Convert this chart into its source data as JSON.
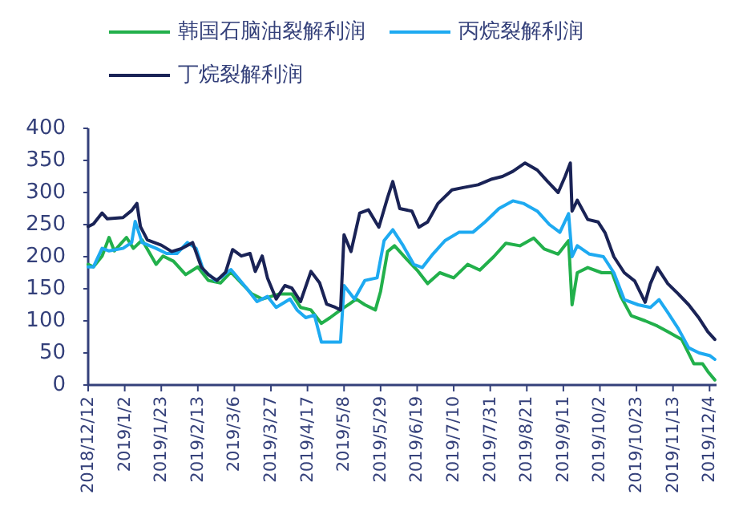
{
  "chart_data": {
    "type": "line",
    "xlim": [
      "2018-12-12",
      "2019-12-08"
    ],
    "xticks": [
      {
        "value": "2018-12-12",
        "label": "2018/12/12"
      },
      {
        "value": "2019-01-02",
        "label": "2019/1/2"
      },
      {
        "value": "2019-01-23",
        "label": "2019/1/23"
      },
      {
        "value": "2019-02-13",
        "label": "2019/2/13"
      },
      {
        "value": "2019-03-06",
        "label": "2019/3/6"
      },
      {
        "value": "2019-03-27",
        "label": "2019/3/27"
      },
      {
        "value": "2019-04-17",
        "label": "2019/4/17"
      },
      {
        "value": "2019-05-08",
        "label": "2019/5/8"
      },
      {
        "value": "2019-05-29",
        "label": "2019/5/29"
      },
      {
        "value": "2019-06-19",
        "label": "2019/6/19"
      },
      {
        "value": "2019-07-10",
        "label": "2019/7/10"
      },
      {
        "value": "2019-07-31",
        "label": "2019/7/31"
      },
      {
        "value": "2019-08-21",
        "label": "2019/8/21"
      },
      {
        "value": "2019-09-11",
        "label": "2019/9/11"
      },
      {
        "value": "2019-10-02",
        "label": "2019/10/2"
      },
      {
        "value": "2019-10-23",
        "label": "2019/10/23"
      },
      {
        "value": "2019-11-13",
        "label": "2019/11/13"
      },
      {
        "value": "2019-12-04",
        "label": "2019/12/4"
      }
    ],
    "ylim": [
      0,
      400
    ],
    "yticks": [
      0,
      50,
      100,
      150,
      200,
      250,
      300,
      350,
      400
    ],
    "legend": "top",
    "grid": false,
    "line_style": "solid",
    "marker": "none",
    "series": [
      {
        "name": "韩国石脑油裂解利润",
        "color": "#22b04b",
        "x": [
          "2018-12-12",
          "2018-12-15",
          "2018-12-20",
          "2018-12-24",
          "2018-12-27",
          "2019-01-03",
          "2019-01-07",
          "2019-01-12",
          "2019-01-20",
          "2019-01-24",
          "2019-01-30",
          "2019-02-06",
          "2019-02-13",
          "2019-02-19",
          "2019-02-26",
          "2019-03-04",
          "2019-03-10",
          "2019-03-16",
          "2019-03-22",
          "2019-04-01",
          "2019-04-08",
          "2019-04-13",
          "2019-04-19",
          "2019-04-25",
          "2019-04-30",
          "2019-05-06",
          "2019-05-11",
          "2019-05-15",
          "2019-05-20",
          "2019-05-26",
          "2019-05-29",
          "2019-06-02",
          "2019-06-06",
          "2019-06-13",
          "2019-06-19",
          "2019-06-25",
          "2019-07-02",
          "2019-07-10",
          "2019-07-18",
          "2019-07-25",
          "2019-08-02",
          "2019-08-09",
          "2019-08-17",
          "2019-08-25",
          "2019-08-31",
          "2019-09-08",
          "2019-09-14",
          "2019-09-16",
          "2019-09-19",
          "2019-09-25",
          "2019-10-03",
          "2019-10-09",
          "2019-10-14",
          "2019-10-20",
          "2019-10-28",
          "2019-11-04",
          "2019-11-10",
          "2019-11-18",
          "2019-11-25",
          "2019-11-30",
          "2019-12-03",
          "2019-12-07"
        ],
        "values": [
          188,
          184,
          201,
          230,
          209,
          230,
          213,
          226,
          188,
          201,
          193,
          172,
          184,
          163,
          159,
          176,
          159,
          142,
          134,
          142,
          142,
          121,
          117,
          96,
          105,
          117,
          126,
          134,
          125,
          117,
          146,
          208,
          217,
          196,
          179,
          158,
          175,
          167,
          188,
          179,
          200,
          221,
          217,
          229,
          212,
          204,
          225,
          125,
          175,
          183,
          175,
          175,
          138,
          108,
          100,
          92,
          83,
          71,
          33,
          33,
          21,
          8
        ]
      },
      {
        "name": "丙烷裂解利润",
        "color": "#1eaaf1",
        "x": [
          "2018-12-12",
          "2018-12-15",
          "2018-12-20",
          "2018-12-24",
          "2019-01-01",
          "2019-01-06",
          "2019-01-08",
          "2019-01-12",
          "2019-01-20",
          "2019-01-26",
          "2019-02-01",
          "2019-02-07",
          "2019-02-12",
          "2019-02-16",
          "2019-02-23",
          "2019-02-26",
          "2019-03-04",
          "2019-03-08",
          "2019-03-13",
          "2019-03-19",
          "2019-03-25",
          "2019-03-30",
          "2019-04-07",
          "2019-04-11",
          "2019-04-16",
          "2019-04-21",
          "2019-04-25",
          "2019-04-30",
          "2019-05-06",
          "2019-05-08",
          "2019-05-14",
          "2019-05-20",
          "2019-05-27",
          "2019-05-31",
          "2019-06-05",
          "2019-06-11",
          "2019-06-17",
          "2019-06-22",
          "2019-06-28",
          "2019-07-05",
          "2019-07-13",
          "2019-07-21",
          "2019-07-28",
          "2019-08-05",
          "2019-08-13",
          "2019-08-19",
          "2019-08-27",
          "2019-09-03",
          "2019-09-09",
          "2019-09-14",
          "2019-09-16",
          "2019-09-19",
          "2019-09-26",
          "2019-10-04",
          "2019-10-10",
          "2019-10-16",
          "2019-10-24",
          "2019-10-31",
          "2019-11-05",
          "2019-11-10",
          "2019-11-16",
          "2019-11-22",
          "2019-11-28",
          "2019-12-04",
          "2019-12-07"
        ],
        "values": [
          184,
          184,
          213,
          209,
          213,
          222,
          255,
          222,
          213,
          205,
          205,
          222,
          213,
          180,
          163,
          167,
          180,
          167,
          151,
          130,
          138,
          121,
          134,
          117,
          105,
          109,
          67,
          67,
          67,
          155,
          134,
          163,
          167,
          225,
          242,
          217,
          188,
          183,
          204,
          225,
          238,
          238,
          254,
          275,
          287,
          283,
          271,
          250,
          238,
          267,
          200,
          217,
          204,
          200,
          175,
          133,
          125,
          121,
          133,
          113,
          88,
          58,
          50,
          46,
          40
        ]
      },
      {
        "name": "丁烷裂解利润",
        "color": "#1a2356",
        "x": [
          "2018-12-12",
          "2018-12-15",
          "2018-12-20",
          "2018-12-23",
          "2019-01-01",
          "2019-01-06",
          "2019-01-09",
          "2019-01-11",
          "2019-01-15",
          "2019-01-23",
          "2019-01-29",
          "2019-02-04",
          "2019-02-10",
          "2019-02-15",
          "2019-02-19",
          "2019-02-24",
          "2019-03-01",
          "2019-03-05",
          "2019-03-10",
          "2019-03-15",
          "2019-03-18",
          "2019-03-22",
          "2019-03-25",
          "2019-03-30",
          "2019-04-04",
          "2019-04-08",
          "2019-04-13",
          "2019-04-19",
          "2019-04-24",
          "2019-04-28",
          "2019-05-03",
          "2019-05-06",
          "2019-05-08",
          "2019-05-12",
          "2019-05-17",
          "2019-05-22",
          "2019-05-28",
          "2019-06-02",
          "2019-06-05",
          "2019-06-09",
          "2019-06-16",
          "2019-06-20",
          "2019-06-25",
          "2019-07-01",
          "2019-07-09",
          "2019-07-16",
          "2019-07-24",
          "2019-08-01",
          "2019-08-07",
          "2019-08-13",
          "2019-08-20",
          "2019-08-27",
          "2019-09-02",
          "2019-09-08",
          "2019-09-12",
          "2019-09-15",
          "2019-09-16",
          "2019-09-19",
          "2019-09-25",
          "2019-10-01",
          "2019-10-05",
          "2019-10-10",
          "2019-10-16",
          "2019-10-22",
          "2019-10-28",
          "2019-10-31",
          "2019-11-04",
          "2019-11-10",
          "2019-11-16",
          "2019-11-22",
          "2019-11-28",
          "2019-12-03",
          "2019-12-07"
        ],
        "values": [
          247,
          251,
          268,
          259,
          261,
          272,
          283,
          247,
          226,
          218,
          208,
          213,
          222,
          184,
          172,
          163,
          176,
          211,
          201,
          205,
          177,
          201,
          167,
          134,
          155,
          151,
          130,
          177,
          159,
          126,
          121,
          117,
          234,
          208,
          268,
          273,
          246,
          292,
          317,
          275,
          271,
          246,
          254,
          283,
          304,
          308,
          312,
          321,
          325,
          333,
          346,
          335,
          317,
          300,
          325,
          346,
          271,
          288,
          258,
          254,
          237,
          200,
          175,
          162,
          129,
          158,
          183,
          158,
          142,
          125,
          104,
          83,
          71
        ]
      }
    ]
  }
}
